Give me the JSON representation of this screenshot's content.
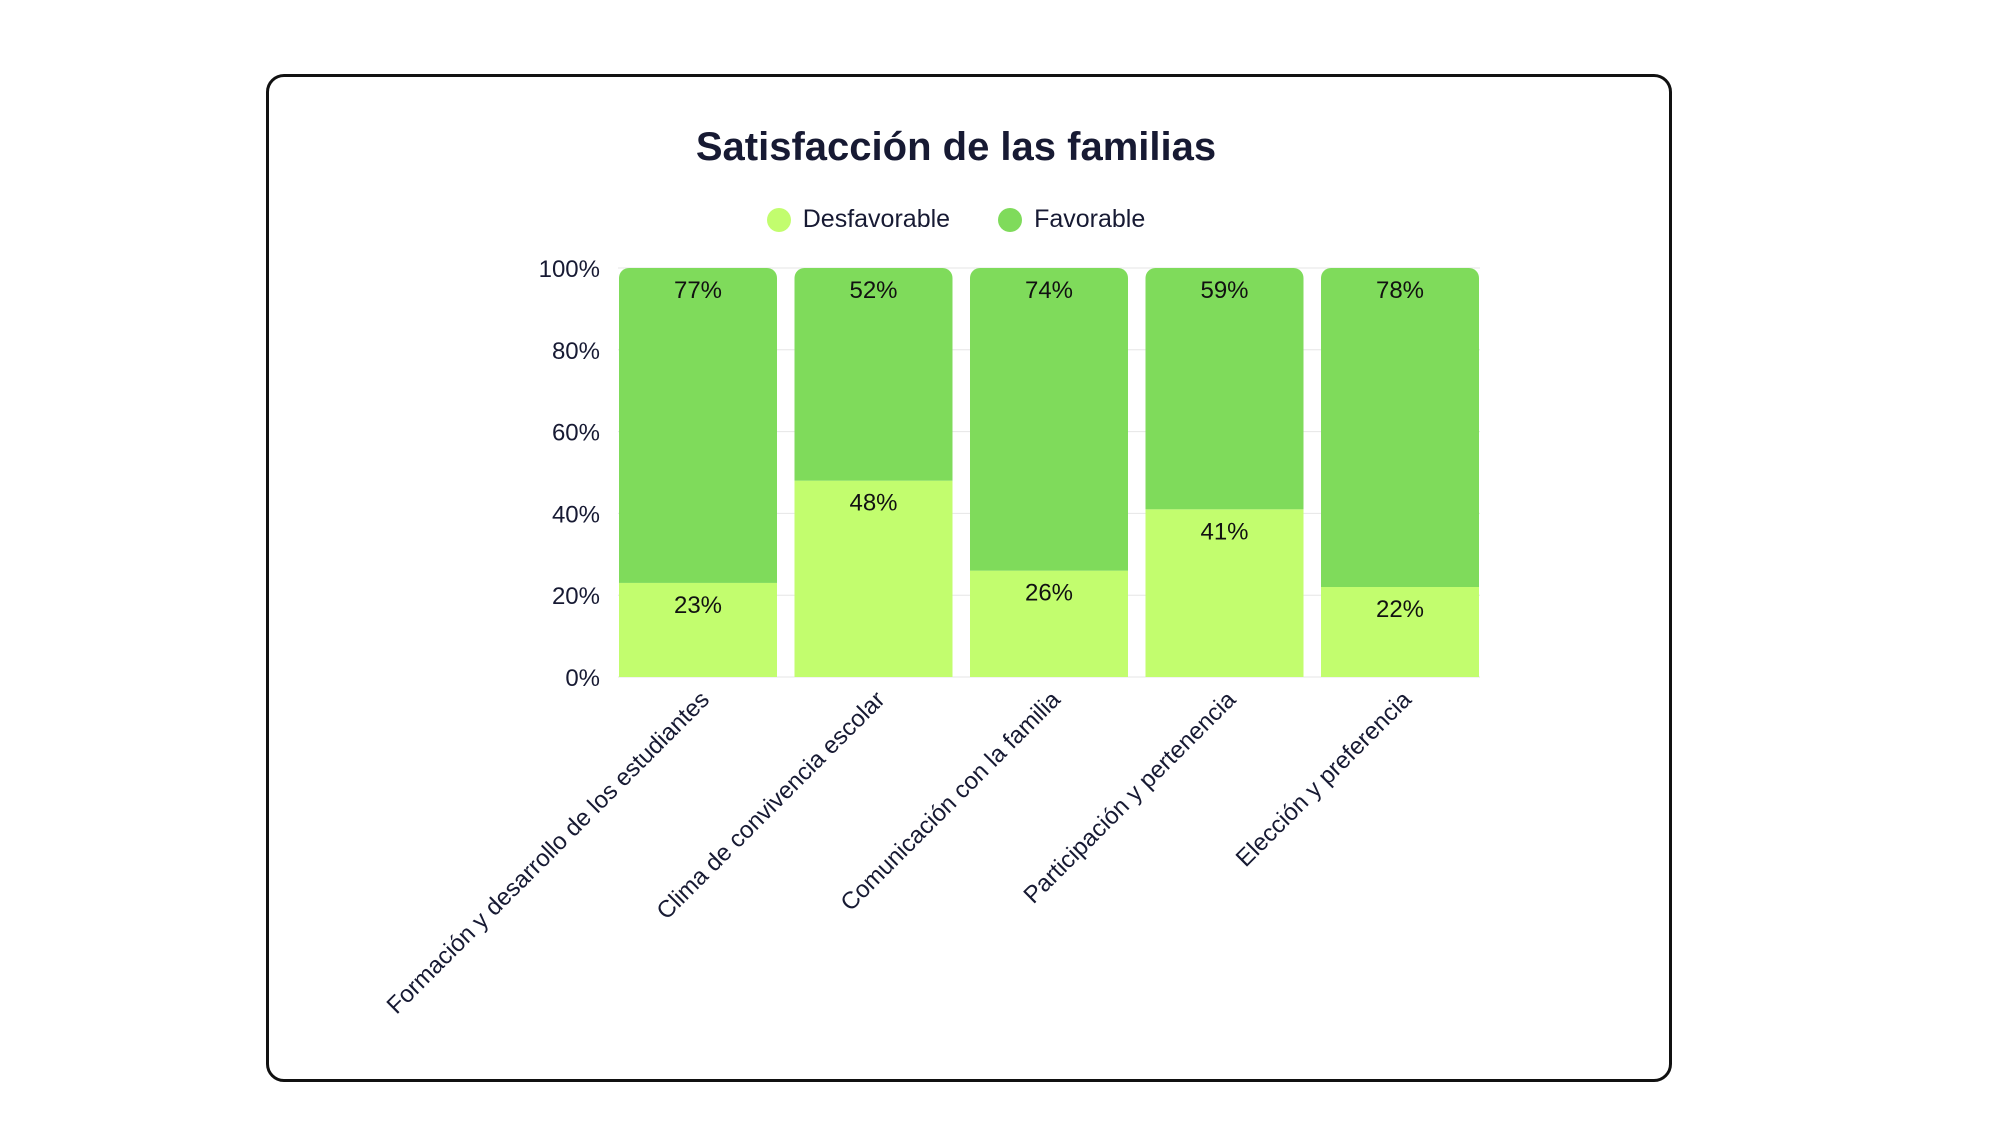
{
  "chart_data": {
    "type": "bar",
    "stacked": true,
    "title": "Satisfacción de las familias",
    "categories": [
      "Formación y desarrollo de los estudiantes",
      "Clima de convivencia escolar",
      "Comunicación con la familia",
      "Participación y pertenencia",
      "Elección y preferencia"
    ],
    "series": [
      {
        "name": "Desfavorable",
        "color": "#c2fd6e",
        "values": [
          23,
          48,
          26,
          41,
          22
        ],
        "labels": [
          "23%",
          "48%",
          "26%",
          "41%",
          "22%"
        ]
      },
      {
        "name": "Favorable",
        "color": "#7fdb5b",
        "values": [
          77,
          52,
          74,
          59,
          78
        ],
        "labels": [
          "77%",
          "52%",
          "74%",
          "59%",
          "78%"
        ]
      }
    ],
    "y_ticks": [
      "0%",
      "20%",
      "40%",
      "60%",
      "80%",
      "100%"
    ],
    "ylim": [
      0,
      100
    ],
    "grid": true,
    "legend_position": "top-center"
  }
}
